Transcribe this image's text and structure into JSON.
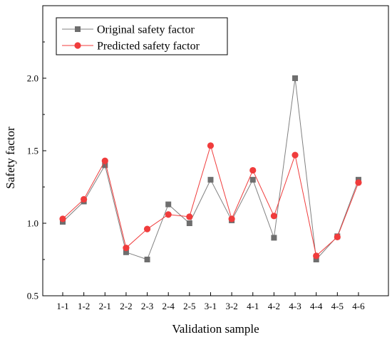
{
  "chart_data": {
    "type": "line",
    "xlabel": "Validation sample",
    "ylabel": "Safety factor",
    "categories": [
      "1-1",
      "1-2",
      "2-1",
      "2-2",
      "2-3",
      "2-4",
      "2-5",
      "3-1",
      "3-2",
      "4-1",
      "4-2",
      "4-3",
      "4-4",
      "4-5",
      "4-6"
    ],
    "ylim": [
      0.5,
      2.5
    ],
    "yticks": [
      "0.5",
      "1.0",
      "1.5",
      "2.0"
    ],
    "ytick_values": [
      0.5,
      1.0,
      1.5,
      2.0
    ],
    "grid": false,
    "legend_position": "top-left",
    "series": [
      {
        "name": "Original safety factor",
        "marker": "square",
        "color": "#808080",
        "values": [
          1.01,
          1.15,
          1.4,
          0.8,
          0.75,
          1.13,
          1.0,
          1.3,
          1.02,
          1.3,
          0.9,
          2.0,
          0.75,
          0.91,
          1.3
        ]
      },
      {
        "name": "Predicted safety factor",
        "marker": "circle",
        "color": "#f03c3c",
        "values": [
          1.03,
          1.165,
          1.43,
          0.83,
          0.96,
          1.06,
          1.045,
          1.535,
          1.03,
          1.365,
          1.05,
          1.47,
          0.775,
          0.905,
          1.28
        ]
      }
    ]
  }
}
